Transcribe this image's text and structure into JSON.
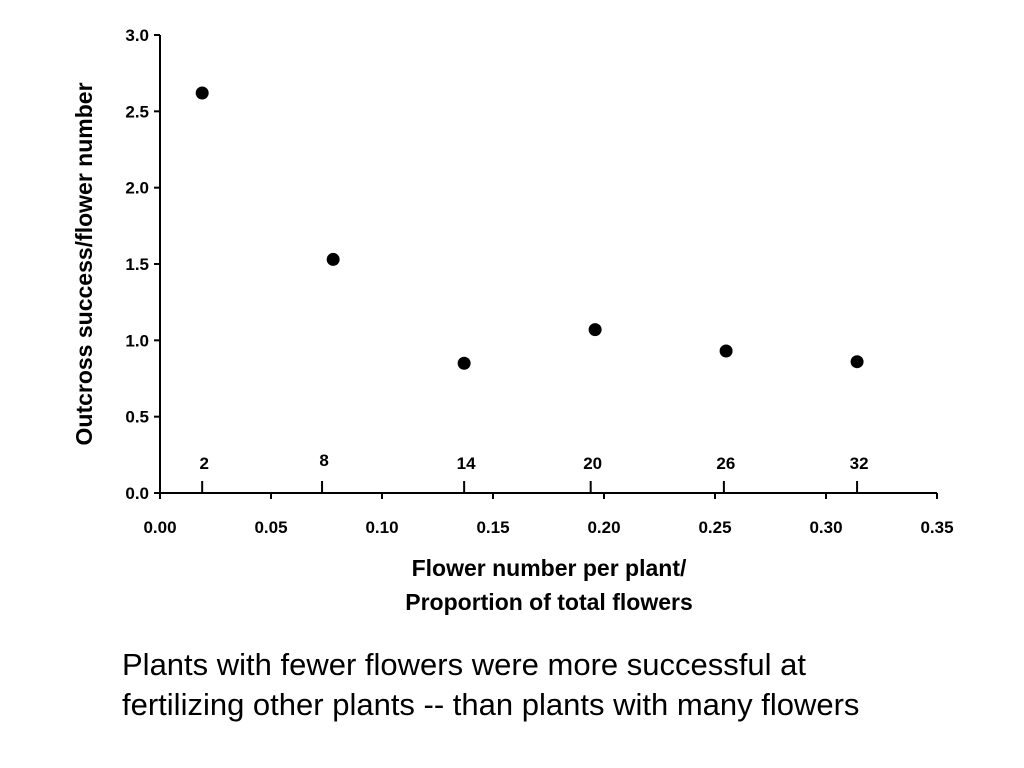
{
  "chart_data": {
    "type": "scatter",
    "title": "",
    "xlabel": [
      "Flower number per plant/",
      "Proportion of total flowers"
    ],
    "ylabel": "Outcross success/flower number",
    "xlim": [
      0,
      0.35
    ],
    "ylim": [
      0,
      3.0
    ],
    "x_ticks": [
      "0.00",
      "0.05",
      "0.10",
      "0.15",
      "0.20",
      "0.25",
      "0.30",
      "0.35"
    ],
    "y_ticks": [
      "0.0",
      "0.5",
      "1.0",
      "1.5",
      "2.0",
      "2.5",
      "3.0"
    ],
    "grid": false,
    "legend": "none",
    "points": [
      {
        "x": 0.019,
        "y": 2.62
      },
      {
        "x": 0.078,
        "y": 1.53
      },
      {
        "x": 0.137,
        "y": 0.85
      },
      {
        "x": 0.196,
        "y": 1.07
      },
      {
        "x": 0.255,
        "y": 0.93
      },
      {
        "x": 0.314,
        "y": 0.86
      }
    ],
    "flower_number_labels": [
      {
        "x": 0.019,
        "label": "2"
      },
      {
        "x": 0.073,
        "label": "8"
      },
      {
        "x": 0.137,
        "label": "14"
      },
      {
        "x": 0.194,
        "label": "20"
      },
      {
        "x": 0.254,
        "label": "26"
      },
      {
        "x": 0.314,
        "label": "32"
      }
    ],
    "marker_color": "#000000",
    "axis_color": "#000000"
  },
  "caption": {
    "line1": "Plants with fewer flowers were more successful at",
    "line2": "fertilizing other plants -- than plants with many flowers"
  }
}
